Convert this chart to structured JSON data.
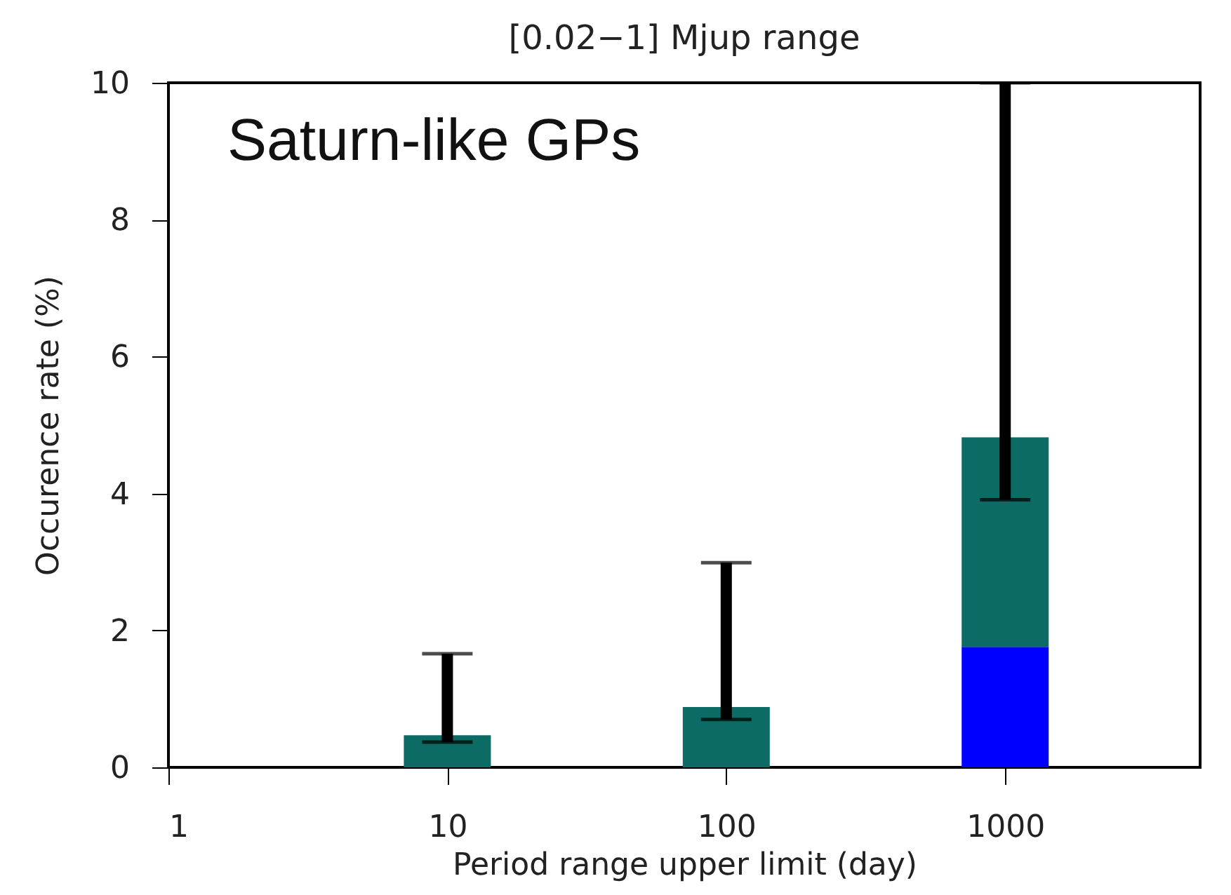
{
  "chart_data": {
    "type": "bar",
    "title": "[0.02−1] Mjup range",
    "xlabel": "Period range upper limit (day)",
    "ylabel": "Occurence rate (%)",
    "annotations": [
      "Saturn-like GPs"
    ],
    "x": [
      10,
      100,
      1000
    ],
    "stacked": true,
    "log": "x",
    "series": [
      {
        "color": "#0000ff",
        "values": [
          null,
          null,
          1.76
        ]
      },
      {
        "color": "#0d6b66",
        "values": [
          0.47,
          0.88,
          3.06
        ],
        "errors": [
          [
            0.37,
            1.66
          ],
          [
            0.7,
            2.99
          ],
          [
            3.91,
            10
          ]
        ]
      }
    ],
    "xlim": [
      1,
      5000
    ],
    "xticks": [
      1,
      10,
      100,
      1000
    ],
    "ylim": [
      0,
      10
    ],
    "yticks": [
      0,
      2,
      4,
      6,
      8,
      10
    ],
    "grid": false,
    "legend": false
  }
}
